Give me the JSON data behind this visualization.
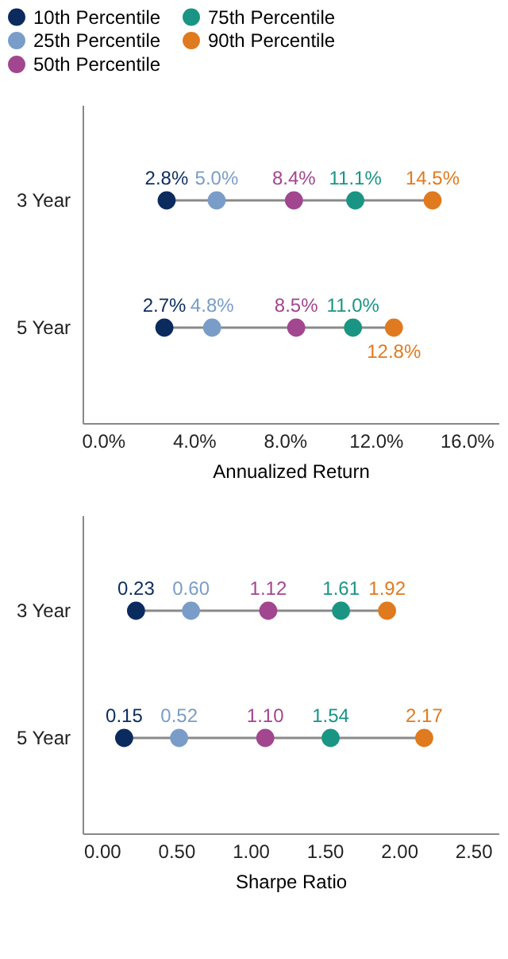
{
  "chart_data": [
    {
      "type": "scatter",
      "orientation": "horizontal",
      "categories": [
        "3 Year",
        "5 Year"
      ],
      "xlabel": "Annualized Return",
      "marker": "circle",
      "legend": "top left",
      "grid": false,
      "xlim": [
        -0.9,
        17.4
      ],
      "xticks": [
        {
          "value": 0,
          "label": "0.0%"
        },
        {
          "value": 4,
          "label": "4.0%"
        },
        {
          "value": 8,
          "label": "8.0%"
        },
        {
          "value": 12,
          "label": "12.0%"
        },
        {
          "value": 16,
          "label": "16.0%"
        }
      ],
      "series": [
        {
          "name": "10th Percentile",
          "color": "#0b2b5e",
          "values": [
            2.8,
            2.7
          ],
          "value_labels": [
            "2.8%",
            "2.7%"
          ]
        },
        {
          "name": "25th Percentile",
          "color": "#7a9cc8",
          "values": [
            5.0,
            4.8
          ],
          "value_labels": [
            "5.0%",
            "4.8%"
          ]
        },
        {
          "name": "50th Percentile",
          "color": "#a2468f",
          "values": [
            8.4,
            8.5
          ],
          "value_labels": [
            "8.4%",
            "8.5%"
          ]
        },
        {
          "name": "75th Percentile",
          "color": "#1a9584",
          "values": [
            11.1,
            11.0
          ],
          "value_labels": [
            "11.1%",
            "11.0%"
          ]
        },
        {
          "name": "90th Percentile",
          "color": "#e07a1f",
          "values": [
            14.5,
            12.8
          ],
          "value_labels": [
            "14.5%",
            "12.8%"
          ]
        }
      ]
    },
    {
      "type": "scatter",
      "orientation": "horizontal",
      "categories": [
        "3 Year",
        "5 Year"
      ],
      "xlabel": "Sharpe Ratio",
      "marker": "circle",
      "grid": false,
      "xlim": [
        -0.13,
        2.67
      ],
      "xticks": [
        {
          "value": 0,
          "label": "0.00"
        },
        {
          "value": 0.5,
          "label": "0.50"
        },
        {
          "value": 1,
          "label": "1.00"
        },
        {
          "value": 1.5,
          "label": "1.50"
        },
        {
          "value": 2,
          "label": "2.00"
        },
        {
          "value": 2.5,
          "label": "2.50"
        }
      ],
      "series": [
        {
          "color": "#0b2b5e",
          "values": [
            0.23,
            0.15
          ],
          "value_labels": [
            "0.23",
            "0.15"
          ]
        },
        {
          "color": "#7a9cc8",
          "values": [
            0.6,
            0.52
          ],
          "value_labels": [
            "0.60",
            "0.52"
          ]
        },
        {
          "color": "#a2468f",
          "values": [
            1.12,
            1.1
          ],
          "value_labels": [
            "1.12",
            "1.10"
          ]
        },
        {
          "color": "#1a9584",
          "values": [
            1.61,
            1.54
          ],
          "value_labels": [
            "1.61",
            "1.54"
          ]
        },
        {
          "color": "#e07a1f",
          "values": [
            1.92,
            2.17
          ],
          "value_labels": [
            "1.92",
            "2.17"
          ]
        }
      ]
    }
  ]
}
